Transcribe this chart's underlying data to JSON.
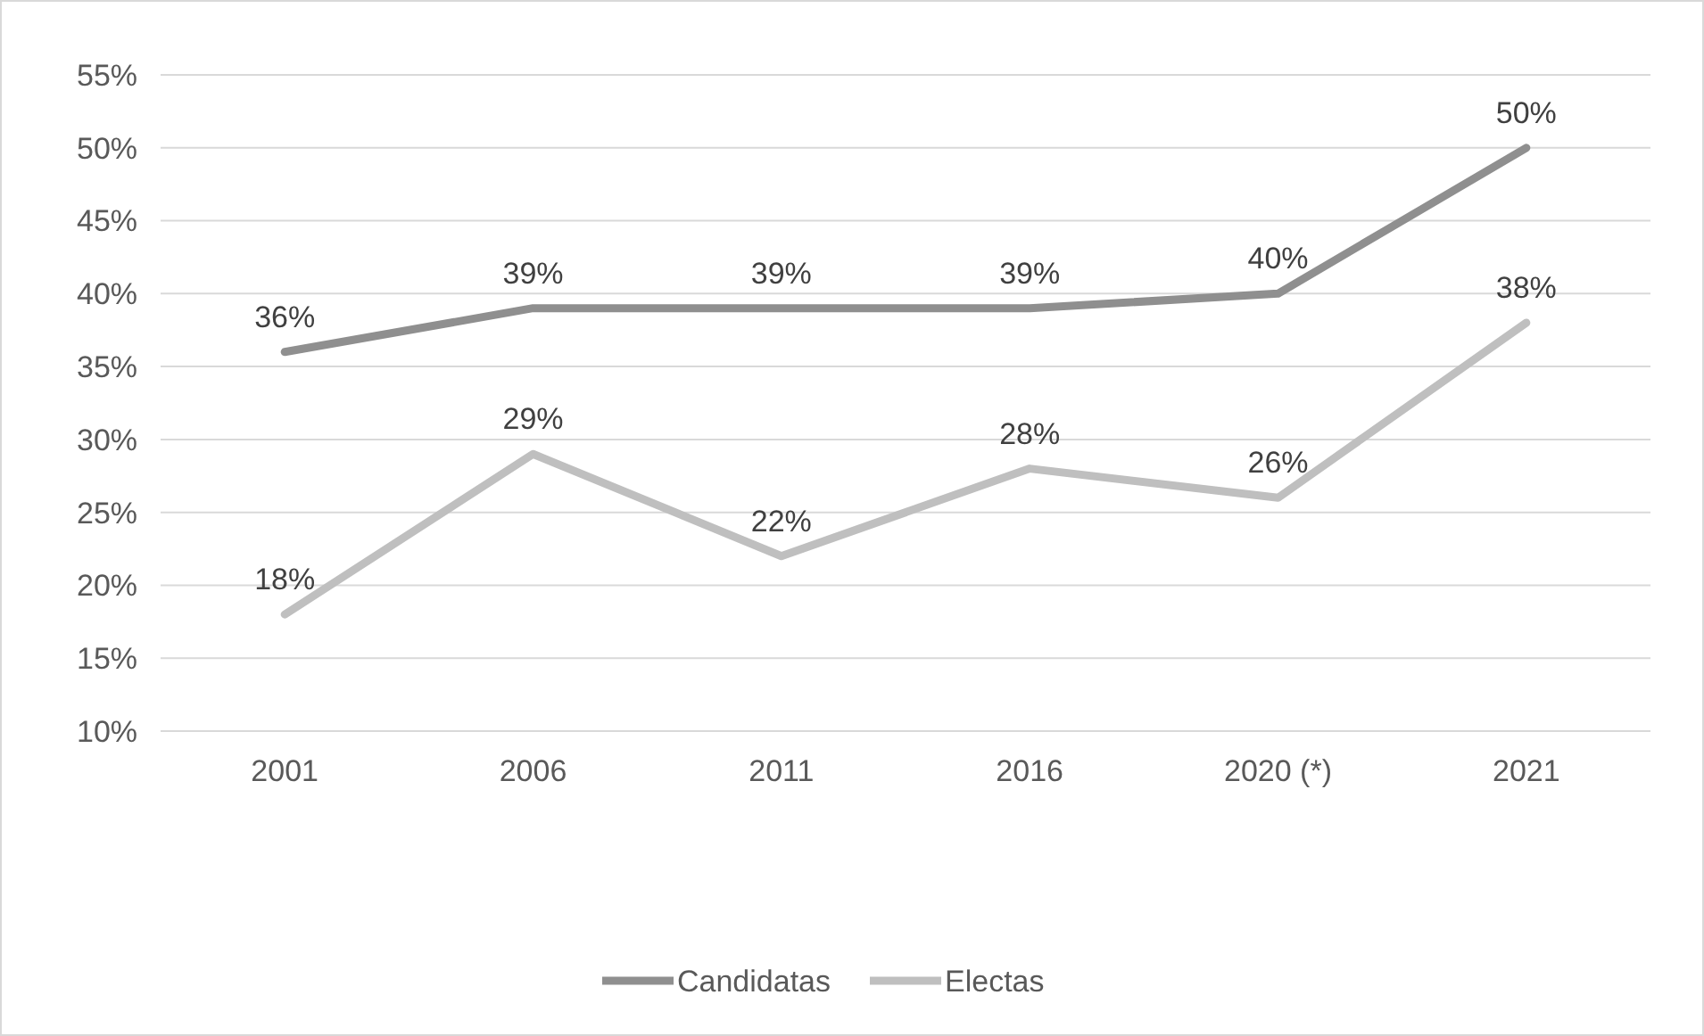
{
  "chart_data": {
    "type": "line",
    "categories": [
      "2001",
      "2006",
      "2011",
      "2016",
      "2020 (*)",
      "2021"
    ],
    "series": [
      {
        "name": "Candidatas",
        "color": "#8f8f8f",
        "values": [
          36,
          39,
          39,
          39,
          40,
          50
        ],
        "value_labels": [
          "36%",
          "39%",
          "39%",
          "39%",
          "40%",
          "50%"
        ]
      },
      {
        "name": "Electas",
        "color": "#bfbfbf",
        "values": [
          18,
          29,
          22,
          28,
          26,
          38
        ],
        "value_labels": [
          "18%",
          "29%",
          "22%",
          "28%",
          "26%",
          "38%"
        ]
      }
    ],
    "ylim": [
      10,
      55
    ],
    "yticks": [
      {
        "value": 10,
        "label": "10%"
      },
      {
        "value": 15,
        "label": "15%"
      },
      {
        "value": 20,
        "label": "20%"
      },
      {
        "value": 25,
        "label": "25%"
      },
      {
        "value": 30,
        "label": "30%"
      },
      {
        "value": 35,
        "label": "35%"
      },
      {
        "value": 40,
        "label": "40%"
      },
      {
        "value": 45,
        "label": "45%"
      },
      {
        "value": 50,
        "label": "50%"
      },
      {
        "value": 55,
        "label": "55%"
      }
    ],
    "grid": "y",
    "legend": "bottom",
    "marker": "none",
    "line_style": "solid"
  }
}
